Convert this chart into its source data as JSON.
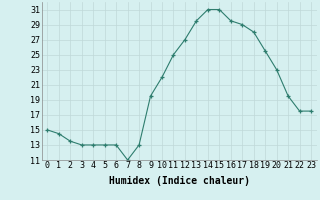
{
  "x": [
    0,
    1,
    2,
    3,
    4,
    5,
    6,
    7,
    8,
    9,
    10,
    11,
    12,
    13,
    14,
    15,
    16,
    17,
    18,
    19,
    20,
    21,
    22,
    23
  ],
  "y": [
    15,
    14.5,
    13.5,
    13,
    13,
    13,
    13,
    11,
    13,
    19.5,
    22,
    25,
    27,
    29.5,
    31,
    31,
    29.5,
    29,
    28,
    25.5,
    23,
    19.5,
    17.5,
    17.5
  ],
  "title": "",
  "xlabel": "Humidex (Indice chaleur)",
  "ylabel": "",
  "xlim": [
    -0.5,
    23.5
  ],
  "ylim": [
    11,
    32
  ],
  "yticks": [
    11,
    13,
    15,
    17,
    19,
    21,
    23,
    25,
    27,
    29,
    31
  ],
  "xtick_labels": [
    "0",
    "1",
    "2",
    "3",
    "4",
    "5",
    "6",
    "7",
    "8",
    "9",
    "10",
    "11",
    "12",
    "13",
    "14",
    "15",
    "16",
    "17",
    "18",
    "19",
    "20",
    "21",
    "22",
    "23"
  ],
  "line_color": "#2e7d6e",
  "marker": "+",
  "bg_color": "#d6f0f0",
  "grid_color": "#c0d8d8",
  "font_family": "monospace",
  "tick_fontsize": 6.0,
  "xlabel_fontsize": 7.0
}
